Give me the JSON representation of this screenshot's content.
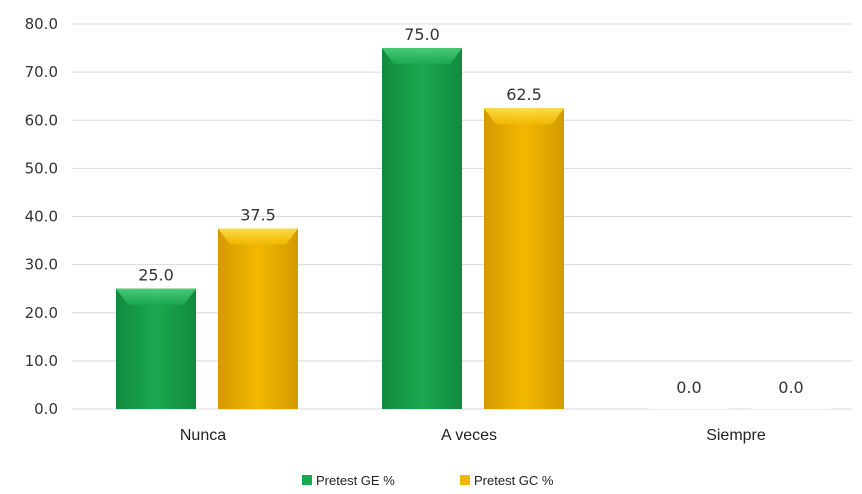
{
  "chart_data": {
    "type": "bar",
    "title": "",
    "xlabel": "",
    "ylabel": "",
    "categories": [
      "Nunca",
      "A veces",
      "Siempre"
    ],
    "ylim": [
      0,
      80
    ],
    "yticks": [
      0,
      10,
      20,
      30,
      40,
      50,
      60,
      70,
      80
    ],
    "ytick_labels": [
      "0.0",
      "10.0",
      "20.0",
      "30.0",
      "40.0",
      "50.0",
      "60.0",
      "70.0",
      "80.0"
    ],
    "grid": true,
    "legend_position": "bottom",
    "series": [
      {
        "name": "Pretest GE %",
        "values": [
          25.0,
          75.0,
          0.0
        ],
        "labels": [
          "25.0",
          "75.0",
          "0.0"
        ],
        "color": "#1aa84f",
        "color_light": "#4fd07d",
        "color_dark": "#128a3e"
      },
      {
        "name": "Pretest GC %",
        "values": [
          37.5,
          62.5,
          0.0
        ],
        "labels": [
          "37.5",
          "62.5",
          "0.0"
        ],
        "color": "#f2b800",
        "color_light": "#ffe14d",
        "color_dark": "#d39a00"
      }
    ]
  }
}
